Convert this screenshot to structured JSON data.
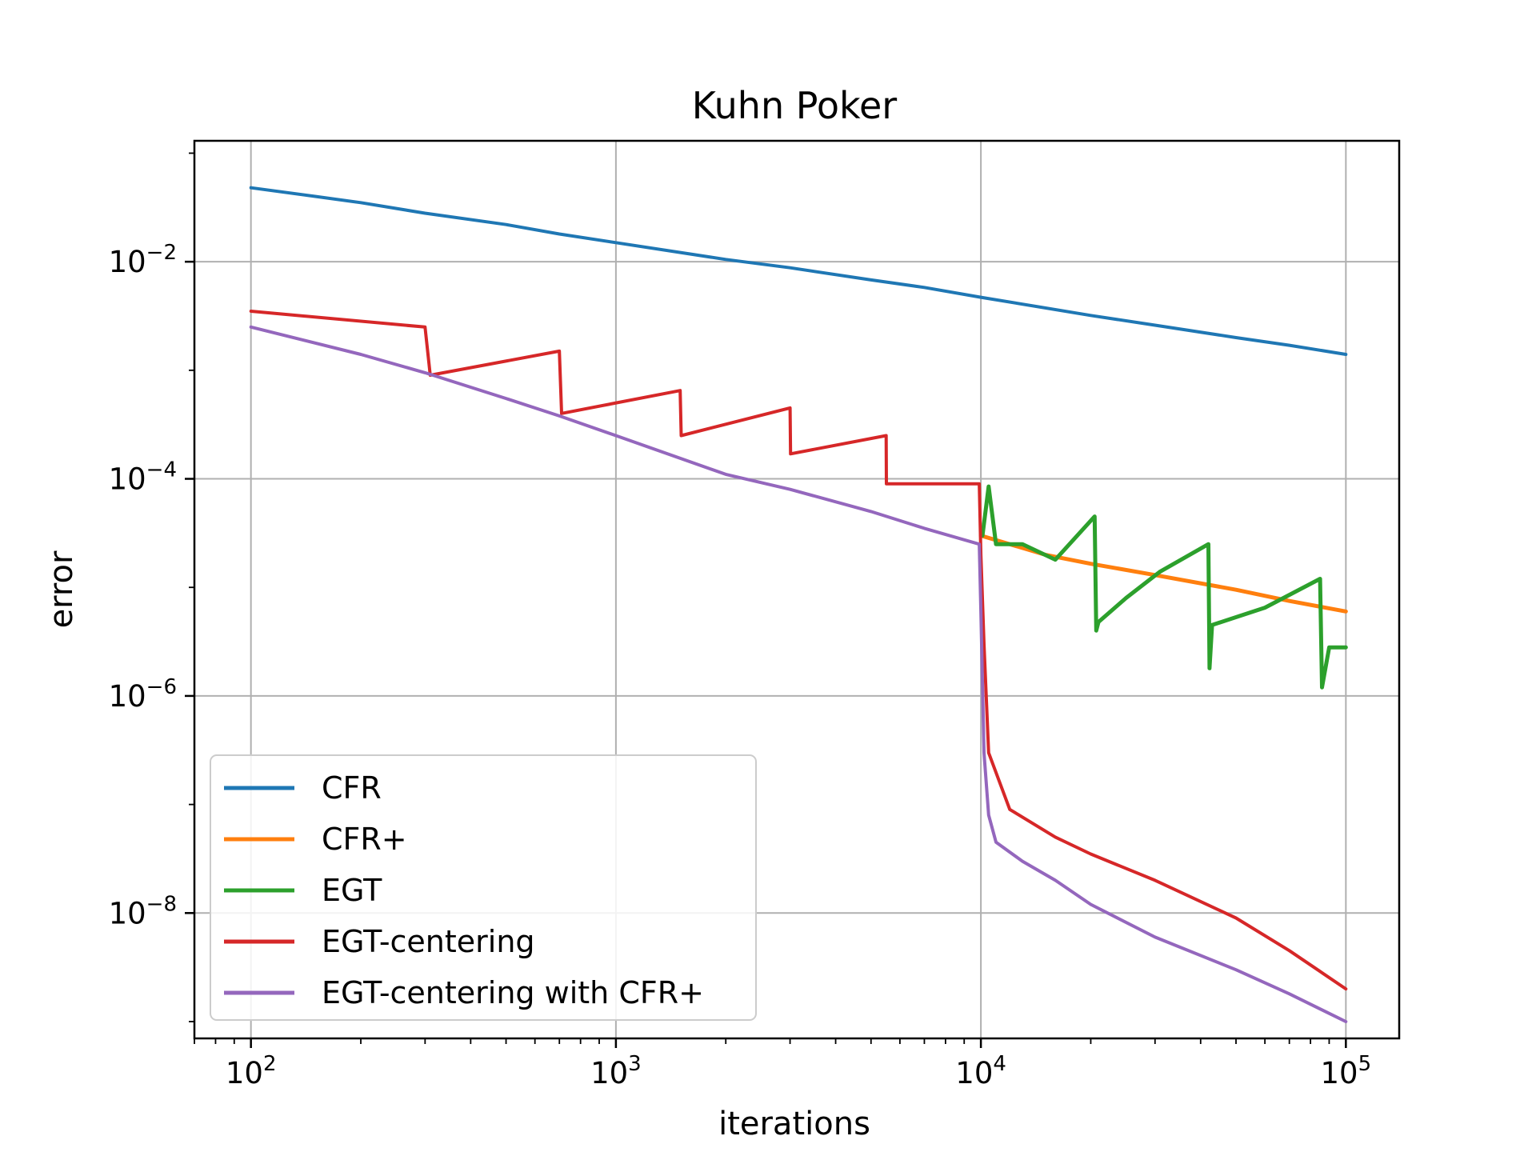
{
  "chart_data": {
    "type": "line",
    "title": "Kuhn Poker",
    "xlabel": "iterations",
    "ylabel": "error",
    "xscale": "log",
    "yscale": "log",
    "xlim": [
      70,
      140000
    ],
    "ylim": [
      7e-10,
      0.13
    ],
    "grid": true,
    "legend_position": "lower-left",
    "x_ticks": [
      {
        "base": "10",
        "exp": "2",
        "value": 100
      },
      {
        "base": "10",
        "exp": "3",
        "value": 1000
      },
      {
        "base": "10",
        "exp": "4",
        "value": 10000
      },
      {
        "base": "10",
        "exp": "5",
        "value": 100000
      }
    ],
    "y_ticks": [
      {
        "base": "10",
        "exp": "−2",
        "value": 0.01
      },
      {
        "base": "10",
        "exp": "−4",
        "value": 0.0001
      },
      {
        "base": "10",
        "exp": "−6",
        "value": 1e-06
      },
      {
        "base": "10",
        "exp": "−8",
        "value": 1e-08
      }
    ],
    "series": [
      {
        "name": "CFR",
        "color": "#1f77b4",
        "x": [
          100,
          150,
          200,
          300,
          500,
          700,
          1000,
          2000,
          3000,
          5000,
          7000,
          10000,
          20000,
          30000,
          50000,
          70000,
          100000
        ],
        "y": [
          0.048,
          0.04,
          0.035,
          0.028,
          0.022,
          0.018,
          0.015,
          0.0105,
          0.0088,
          0.0068,
          0.0058,
          0.0047,
          0.0032,
          0.0026,
          0.002,
          0.0017,
          0.0014
        ]
      },
      {
        "name": "CFR+",
        "color": "#ff7f0e",
        "x": [
          10000,
          15000,
          20000,
          30000,
          50000,
          70000,
          100000
        ],
        "y": [
          3e-05,
          2e-05,
          1.65e-05,
          1.3e-05,
          9.5e-06,
          7.5e-06,
          6e-06
        ]
      },
      {
        "name": "EGT",
        "color": "#2ca02c",
        "x": [
          10100,
          10500,
          11000,
          13000,
          16000,
          20500,
          20700,
          21000,
          25000,
          31000,
          42000,
          42300,
          43000,
          60000,
          85000,
          86000,
          90000,
          100000
        ],
        "y": [
          3e-05,
          8.5e-05,
          2.5e-05,
          2.5e-05,
          1.8e-05,
          4.5e-05,
          4e-06,
          4.8e-06,
          8e-06,
          1.4e-05,
          2.5e-05,
          1.8e-06,
          4.5e-06,
          6.5e-06,
          1.2e-05,
          1.2e-06,
          2.8e-06,
          2.8e-06
        ]
      },
      {
        "name": "EGT-centering",
        "color": "#d62728",
        "x": [
          100,
          300,
          310,
          700,
          710,
          1500,
          1510,
          3000,
          3010,
          5500,
          5510,
          9900,
          10000,
          10200,
          10500,
          12000,
          16000,
          20000,
          30000,
          50000,
          70000,
          100000
        ],
        "y": [
          0.0035,
          0.0025,
          0.0009,
          0.0015,
          0.0004,
          0.00065,
          0.00025,
          0.00045,
          0.00017,
          0.00025,
          9e-05,
          9e-05,
          2e-05,
          3e-06,
          3e-07,
          9e-08,
          5e-08,
          3.5e-08,
          2e-08,
          9e-09,
          4.5e-09,
          2e-09
        ]
      },
      {
        "name": "EGT-centering with CFR+",
        "color": "#9467bd",
        "x": [
          100,
          200,
          300,
          500,
          700,
          1000,
          2000,
          3000,
          5000,
          7000,
          9900,
          10000,
          10200,
          10500,
          11000,
          13000,
          16000,
          20000,
          30000,
          50000,
          70000,
          100000
        ],
        "y": [
          0.0025,
          0.0014,
          0.00095,
          0.00055,
          0.00038,
          0.00025,
          0.00011,
          8e-05,
          5e-05,
          3.5e-05,
          2.5e-05,
          6e-06,
          3e-07,
          8e-08,
          4.5e-08,
          3e-08,
          2e-08,
          1.2e-08,
          6e-09,
          3e-09,
          1.8e-09,
          1e-09
        ]
      }
    ]
  }
}
